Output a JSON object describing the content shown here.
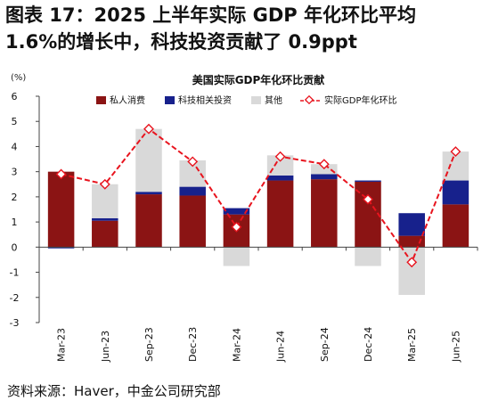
{
  "figure": {
    "title_line1": "图表 17：2025 上半年实际 GDP 年化环比平均",
    "title_line2": "1.6%的增长中，科技投资贡献了 0.9ppt",
    "source": "资料来源：Haver，中金公司研究部"
  },
  "chart_data": {
    "type": "bar",
    "stacked": true,
    "title": "美国实际GDP年化环比贡献",
    "ylabel": "(%)",
    "ylim": [
      -3,
      6
    ],
    "yticks": [
      -3,
      -2,
      -1,
      0,
      1,
      2,
      3,
      4,
      5,
      6
    ],
    "ytick_labels": [
      "-3",
      "-2",
      "-1",
      "0",
      "1",
      "2",
      "3",
      "4",
      "5",
      "6"
    ],
    "grid": false,
    "legend_position": "top",
    "categories": [
      "Mar-23",
      "Jun-23",
      "Sep-23",
      "Dec-23",
      "Mar-24",
      "Jun-24",
      "Sep-24",
      "Dec-24",
      "Mar-25",
      "Jun-25"
    ],
    "series": [
      {
        "name": "私人消费",
        "kind": "bar",
        "color": "#8B1414",
        "values": [
          3.0,
          1.05,
          2.1,
          2.05,
          1.3,
          2.65,
          2.7,
          2.6,
          0.45,
          1.7
        ]
      },
      {
        "name": "科技相关投资",
        "kind": "bar",
        "color": "#17218C",
        "values": [
          -0.05,
          0.1,
          0.1,
          0.35,
          0.25,
          0.2,
          0.2,
          0.05,
          0.9,
          0.95
        ]
      },
      {
        "name": "其他",
        "kind": "bar",
        "color": "#D9D9D9",
        "values": [
          0.0,
          1.35,
          2.5,
          1.05,
          -0.75,
          0.8,
          0.4,
          -0.75,
          -1.9,
          1.15
        ]
      },
      {
        "name": "实际GDP年化环比",
        "kind": "line",
        "color": "#E8141E",
        "values": [
          2.9,
          2.5,
          4.7,
          3.4,
          0.8,
          3.6,
          3.3,
          1.9,
          -0.6,
          3.8
        ]
      }
    ]
  }
}
